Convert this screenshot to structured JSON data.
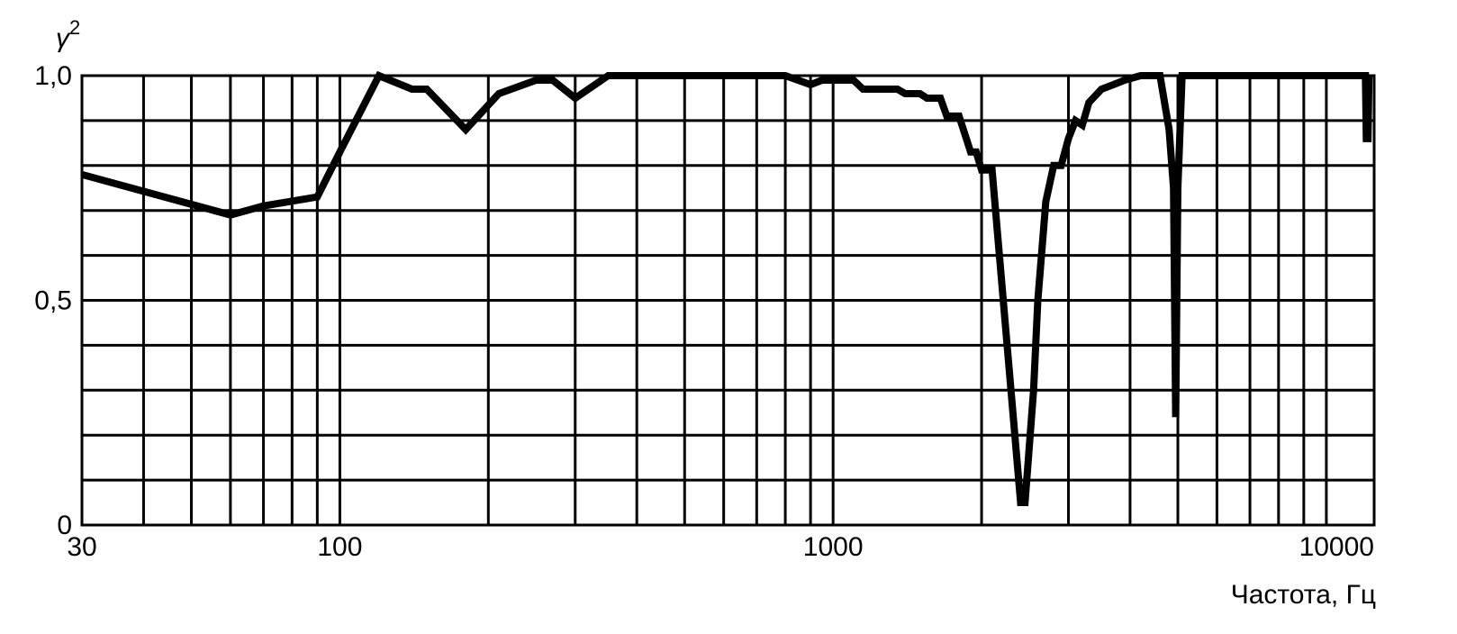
{
  "chart_data": {
    "type": "line",
    "x_scale": "log",
    "grid": true,
    "xlim": [
      30,
      12500
    ],
    "ylim": [
      0,
      1.0
    ],
    "ylabel": "γ²",
    "ylabel_base": "γ",
    "ylabel_sup": "2",
    "xlabel": "Частота, Гц",
    "x_ticks": [
      {
        "value": 30,
        "label": "30"
      },
      {
        "value": 100,
        "label": "100"
      },
      {
        "value": 1000,
        "label": "1000"
      },
      {
        "value": 10000,
        "label": "10000"
      }
    ],
    "y_ticks": [
      {
        "value": 0,
        "label": "0"
      },
      {
        "value": 0.5,
        "label": "0,5"
      },
      {
        "value": 1.0,
        "label": "1,0"
      }
    ],
    "x_gridlines": [
      40,
      50,
      60,
      70,
      80,
      90,
      100,
      200,
      300,
      400,
      500,
      600,
      700,
      800,
      900,
      1000,
      2000,
      3000,
      4000,
      5000,
      6000,
      7000,
      8000,
      9000,
      10000
    ],
    "y_gridlines": [
      0.1,
      0.2,
      0.3,
      0.4,
      0.5,
      0.6,
      0.7,
      0.8,
      0.9
    ],
    "series": [
      {
        "line_color": "#000000",
        "points": [
          [
            30,
            0.78
          ],
          [
            60,
            0.69
          ],
          [
            70,
            0.71
          ],
          [
            90,
            0.73
          ],
          [
            100,
            0.83
          ],
          [
            120,
            1.0
          ],
          [
            140,
            0.97
          ],
          [
            150,
            0.97
          ],
          [
            180,
            0.88
          ],
          [
            210,
            0.96
          ],
          [
            250,
            0.99
          ],
          [
            270,
            0.99
          ],
          [
            300,
            0.95
          ],
          [
            350,
            1.0
          ],
          [
            400,
            1.0
          ],
          [
            800,
            1.0
          ],
          [
            900,
            0.98
          ],
          [
            950,
            0.99
          ],
          [
            1000,
            0.99
          ],
          [
            1100,
            0.99
          ],
          [
            1150,
            0.97
          ],
          [
            1300,
            0.97
          ],
          [
            1350,
            0.97
          ],
          [
            1400,
            0.96
          ],
          [
            1500,
            0.96
          ],
          [
            1550,
            0.95
          ],
          [
            1600,
            0.95
          ],
          [
            1650,
            0.95
          ],
          [
            1700,
            0.91
          ],
          [
            1800,
            0.91
          ],
          [
            1900,
            0.83
          ],
          [
            1950,
            0.83
          ],
          [
            2000,
            0.79
          ],
          [
            2050,
            0.79
          ],
          [
            2100,
            0.79
          ],
          [
            2400,
            0.05
          ],
          [
            2450,
            0.05
          ],
          [
            2550,
            0.3
          ],
          [
            2600,
            0.5
          ],
          [
            2700,
            0.72
          ],
          [
            2800,
            0.8
          ],
          [
            2900,
            0.8
          ],
          [
            3000,
            0.86
          ],
          [
            3100,
            0.9
          ],
          [
            3200,
            0.89
          ],
          [
            3300,
            0.94
          ],
          [
            3500,
            0.97
          ],
          [
            3700,
            0.98
          ],
          [
            3900,
            0.99
          ],
          [
            4200,
            1.0
          ],
          [
            4600,
            1.0
          ],
          [
            4800,
            0.88
          ],
          [
            4900,
            0.75
          ],
          [
            4950,
            0.24
          ],
          [
            5000,
            0.75
          ],
          [
            5100,
            1.0
          ],
          [
            12000,
            1.0
          ],
          [
            12050,
            0.86
          ],
          [
            12150,
            0.86
          ],
          [
            12200,
            1.0
          ]
        ]
      }
    ]
  }
}
